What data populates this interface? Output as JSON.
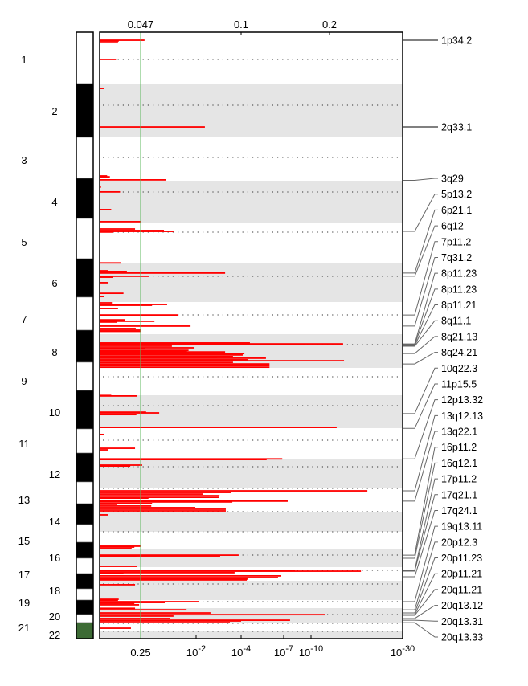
{
  "chart_data": {
    "type": "bar",
    "orientation": "horizontal",
    "title": "",
    "xlabel": "",
    "ylabel": "",
    "top_axis_ticks": [
      "0.047",
      "0.1",
      "0.2"
    ],
    "bottom_axis_ticks": [
      {
        "label": "0.25",
        "value": 0.25
      },
      {
        "base": "10",
        "exp": "-2",
        "value": 0.01
      },
      {
        "base": "10",
        "exp": "-4",
        "value": 0.0001
      },
      {
        "base": "10",
        "exp": "-7",
        "value": 1e-07
      },
      {
        "base": "10",
        "exp": "-10",
        "value": 1e-10
      },
      {
        "base": "10",
        "exp": "-30",
        "value": 1e-30
      }
    ],
    "significance_threshold_q": 0.25,
    "x_scale": "nonlinear q-value (1 at left, 1e-30 at right)",
    "grid": false,
    "colors": {
      "bar": "#ff0000",
      "threshold": "#5cb85c",
      "even_band": "#e5e5e5",
      "centromere": "#333333"
    },
    "chromosomes": [
      "1",
      "2",
      "3",
      "4",
      "5",
      "6",
      "7",
      "8",
      "9",
      "10",
      "11",
      "12",
      "13",
      "14",
      "15",
      "16",
      "17",
      "18",
      "19",
      "20",
      "21",
      "22"
    ],
    "chromosome_lengths_mb": [
      249,
      243,
      198,
      191,
      181,
      171,
      159,
      146,
      141,
      136,
      135,
      134,
      115,
      107,
      103,
      90,
      81,
      78,
      59,
      63,
      48,
      51
    ],
    "series": [
      {
        "values_note": "each: [chromosome, position Mb, -log10 q]",
        "bars": [
          [
            1,
            39,
            0.7
          ],
          [
            1,
            43,
            0.28
          ],
          [
            1,
            51,
            0.27
          ],
          [
            1,
            132,
            0.24
          ],
          [
            2,
            22,
            0.07
          ],
          [
            2,
            196,
            2.39
          ],
          [
            3,
            176,
            0.11
          ],
          [
            3,
            180,
            0.15
          ],
          [
            3,
            194,
            1.25
          ],
          [
            4,
            29,
            0.02
          ],
          [
            4,
            51,
            0.3
          ],
          [
            4,
            132,
            0.17
          ],
          [
            4,
            187,
            0.6
          ],
          [
            5,
            29,
            0.52
          ],
          [
            5,
            36,
            1.19
          ],
          [
            5,
            40,
            1.43
          ],
          [
            5,
            43,
            0.2
          ],
          [
            6,
            1,
            0.31
          ],
          [
            6,
            35,
            0.12
          ],
          [
            6,
            38,
            0.4
          ],
          [
            6,
            45,
            3.29
          ],
          [
            6,
            59,
            0.82
          ],
          [
            6,
            63,
            0.19
          ],
          [
            6,
            87,
            0.13
          ],
          [
            6,
            133,
            0.35
          ],
          [
            6,
            147,
            0.07
          ],
          [
            7,
            4,
            0.18
          ],
          [
            7,
            12,
            1.27
          ],
          [
            7,
            16,
            0.89
          ],
          [
            7,
            32,
            0.27
          ],
          [
            7,
            64,
            1.55
          ],
          [
            7,
            88,
            0.37
          ],
          [
            7,
            95,
            0.95
          ],
          [
            7,
            99,
            0.26
          ],
          [
            7,
            119,
            1.86
          ],
          [
            7,
            131,
            0.53
          ],
          [
            7,
            139,
            0.6
          ],
          [
            7,
            145,
            0.6
          ],
          [
            8,
            38,
            4.62
          ],
          [
            8,
            42,
            17.0
          ],
          [
            8,
            45,
            9.38
          ],
          [
            8,
            52,
            1.39
          ],
          [
            8,
            59,
            1.96
          ],
          [
            8,
            63,
            0.72
          ],
          [
            8,
            70,
            1.81
          ],
          [
            8,
            73,
            1.77
          ],
          [
            8,
            77,
            3.29
          ],
          [
            8,
            84,
            4.23
          ],
          [
            8,
            87,
            3.32
          ],
          [
            8,
            90,
            4.11
          ],
          [
            8,
            97,
            3.64
          ],
          [
            8,
            101,
            2.93
          ],
          [
            8,
            104,
            5.75
          ],
          [
            8,
            111,
            4.51
          ],
          [
            8,
            115,
            17.2
          ],
          [
            8,
            122,
            3.64
          ],
          [
            8,
            129,
            6.0
          ],
          [
            8,
            136,
            6.0
          ],
          [
            8,
            143,
            6.0
          ],
          [
            9,
            37,
            0.01
          ],
          [
            10,
            1,
            0.17
          ],
          [
            10,
            3,
            0.55
          ],
          [
            10,
            70,
            0.74
          ],
          [
            10,
            73,
            1.07
          ],
          [
            10,
            80,
            0.54
          ],
          [
            10,
            133,
            15.6
          ],
          [
            11,
            28,
            0.07
          ],
          [
            11,
            89,
            0.52
          ],
          [
            11,
            96,
            0.12
          ],
          [
            12,
            1,
            6.9
          ],
          [
            12,
            4,
            5.8
          ],
          [
            12,
            29,
            0.64
          ],
          [
            12,
            33,
            0.45
          ],
          [
            13,
            12,
            22.3
          ],
          [
            13,
            20,
            3.54
          ],
          [
            13,
            28,
            2.32
          ],
          [
            13,
            36,
            3.04
          ],
          [
            13,
            44,
            3.0
          ],
          [
            13,
            48,
            0.8
          ],
          [
            13,
            63,
            7.44
          ],
          [
            13,
            67,
            3.61
          ],
          [
            13,
            75,
            0.89
          ],
          [
            13,
            79,
            0.25
          ],
          [
            13,
            87,
            0.87
          ],
          [
            13,
            95,
            1.98
          ],
          [
            13,
            103,
            3.32
          ],
          [
            13,
            111,
            3.32
          ],
          [
            14,
            17,
            0.12
          ],
          [
            15,
            84,
            0.6
          ],
          [
            15,
            89,
            0.51
          ],
          [
            15,
            98,
            0.47
          ],
          [
            16,
            29,
            3.89
          ],
          [
            16,
            33,
            3.07
          ],
          [
            16,
            37,
            0.54
          ],
          [
            16,
            86,
            0.55
          ],
          [
            17,
            19,
            8.24
          ],
          [
            17,
            24,
            20.9
          ],
          [
            17,
            33,
            3.71
          ],
          [
            17,
            38,
            0.35
          ],
          [
            17,
            52,
            6.83
          ],
          [
            17,
            62,
            6.6
          ],
          [
            17,
            71,
            4.45
          ],
          [
            17,
            76,
            4.4
          ],
          [
            18,
            16,
            0.52
          ],
          [
            18,
            75,
            0.28
          ],
          [
            19,
            1,
            0.27
          ],
          [
            19,
            12,
            2.11
          ],
          [
            19,
            18,
            1.21
          ],
          [
            19,
            24,
            0.51
          ],
          [
            19,
            35,
            0.58
          ],
          [
            20,
            1,
            0.52
          ],
          [
            20,
            7,
            1.76
          ],
          [
            20,
            20,
            2.64
          ],
          [
            20,
            27,
            13.0
          ],
          [
            20,
            33,
            1.43
          ],
          [
            20,
            43,
            1.35
          ],
          [
            20,
            50,
            7.7
          ],
          [
            20,
            53,
            4.0
          ],
          [
            20,
            60,
            3.5
          ],
          [
            21,
            29,
            0.46
          ]
        ]
      }
    ],
    "peaks": [
      {
        "label": "1p34.2",
        "chr": 1,
        "mb": 39
      },
      {
        "label": "2q33.1",
        "chr": 2,
        "mb": 196
      },
      {
        "label": "3q29",
        "chr": 3,
        "mb": 196
      },
      {
        "label": "5p13.2",
        "chr": 5,
        "mb": 40
      },
      {
        "label": "6p21.1",
        "chr": 6,
        "mb": 45
      },
      {
        "label": "6q12",
        "chr": 6,
        "mb": 59
      },
      {
        "label": "7p11.2",
        "chr": 7,
        "mb": 64
      },
      {
        "label": "7q31.2",
        "chr": 7,
        "mb": 119
      },
      {
        "label": "8p11.23",
        "chr": 8,
        "mb": 42
      },
      {
        "label": "8p11.23",
        "chr": 8,
        "mb": 45
      },
      {
        "label": "8p11.21",
        "chr": 8,
        "mb": 49
      },
      {
        "label": "8q11.1",
        "chr": 8,
        "mb": 52
      },
      {
        "label": "8q21.13",
        "chr": 8,
        "mb": 84
      },
      {
        "label": "8q24.21",
        "chr": 8,
        "mb": 129
      },
      {
        "label": "10q22.3",
        "chr": 10,
        "mb": 76
      },
      {
        "label": "11p15.5",
        "chr": 11,
        "mb": 1
      },
      {
        "label": "12p13.32",
        "chr": 12,
        "mb": 1
      },
      {
        "label": "13q12.13",
        "chr": 13,
        "mb": 12
      },
      {
        "label": "13q22.1",
        "chr": 13,
        "mb": 63
      },
      {
        "label": "16p11.2",
        "chr": 16,
        "mb": 29
      },
      {
        "label": "16q12.1",
        "chr": 16,
        "mb": 45
      },
      {
        "label": "17p11.2",
        "chr": 17,
        "mb": 19
      },
      {
        "label": "17q21.1",
        "chr": 17,
        "mb": 24
      },
      {
        "label": "17q24.1",
        "chr": 17,
        "mb": 57
      },
      {
        "label": "19q13.11",
        "chr": 19,
        "mb": 12
      },
      {
        "label": "20p12.3",
        "chr": 20,
        "mb": 7
      },
      {
        "label": "20p11.23",
        "chr": 20,
        "mb": 20
      },
      {
        "label": "20p11.21",
        "chr": 20,
        "mb": 27
      },
      {
        "label": "20q11.21",
        "chr": 20,
        "mb": 30
      },
      {
        "label": "20q13.12",
        "chr": 20,
        "mb": 43
      },
      {
        "label": "20q13.31",
        "chr": 20,
        "mb": 50
      },
      {
        "label": "20q13.33",
        "chr": 20,
        "mb": 60
      }
    ]
  }
}
